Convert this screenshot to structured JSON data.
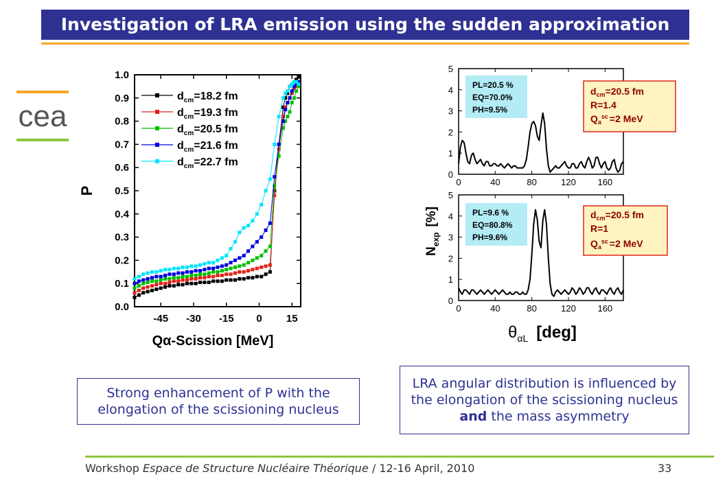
{
  "slide": {
    "title": "Investigation of LRA emission using the sudden approximation",
    "logo_text": "cea",
    "note_left": "Strong enhancement of P with the elongation of the scissioning nucleus",
    "note_right_a": "LRA angular distribution is influenced by the elongation of the scissioning nucleus ",
    "note_right_bold": "and",
    "note_right_b": " the mass asymmetry",
    "footer_prefix": "Workshop ",
    "footer_italic": "Espace de Structure Nucléaire Théorique",
    "footer_suffix": " / 12-16 April, 2010",
    "page_number": "33"
  },
  "chart_data": [
    {
      "type": "line",
      "xlabel_main": "Qα-Scission [MeV]",
      "ylabel": "P",
      "xlim": [
        -57,
        19
      ],
      "ylim": [
        0,
        1
      ],
      "xticks": [
        -45,
        -30,
        -15,
        0,
        15
      ],
      "xtick_labels": [
        "-45",
        "-30",
        "-15",
        "0",
        "15"
      ],
      "yticks": [
        0,
        0.1,
        0.2,
        0.3,
        0.4,
        0.5,
        0.6,
        0.7,
        0.8,
        0.9,
        1.0
      ],
      "ytick_labels": [
        "0.0",
        "0.1",
        "0.2",
        "0.3",
        "0.4",
        "0.5",
        "0.6",
        "0.7",
        "0.8",
        "0.9",
        "1.0"
      ],
      "legend_placement": "top-left",
      "series": [
        {
          "name": "d_cm=18.2 fm",
          "legend_label": "=18.2 fm",
          "color": "#000000",
          "x": [
            -57,
            -55,
            -53,
            -51,
            -49,
            -47,
            -45,
            -43,
            -41,
            -39,
            -37,
            -35,
            -33,
            -31,
            -29,
            -27,
            -25,
            -23,
            -21,
            -19,
            -17,
            -15,
            -13,
            -11,
            -9,
            -7,
            -5,
            -3,
            -1,
            1,
            3,
            5,
            7,
            9,
            11,
            12,
            13,
            14,
            15,
            16,
            17,
            18
          ],
          "y": [
            0.04,
            0.05,
            0.06,
            0.065,
            0.07,
            0.075,
            0.08,
            0.085,
            0.09,
            0.09,
            0.095,
            0.095,
            0.1,
            0.1,
            0.1,
            0.105,
            0.105,
            0.105,
            0.11,
            0.11,
            0.11,
            0.115,
            0.115,
            0.115,
            0.12,
            0.12,
            0.125,
            0.125,
            0.13,
            0.13,
            0.14,
            0.15,
            0.5,
            0.7,
            0.86,
            0.9,
            0.92,
            0.95,
            0.96,
            0.97,
            0.98,
            0.99
          ]
        },
        {
          "name": "d_cm=19.3 fm",
          "legend_label": "=19.3 fm",
          "color": "#e2231a",
          "x": [
            -57,
            -55,
            -53,
            -51,
            -49,
            -47,
            -45,
            -43,
            -41,
            -39,
            -37,
            -35,
            -33,
            -31,
            -29,
            -27,
            -25,
            -23,
            -21,
            -19,
            -17,
            -15,
            -13,
            -11,
            -9,
            -7,
            -5,
            -3,
            -1,
            1,
            3,
            5,
            7,
            9,
            11,
            12,
            13,
            14,
            15,
            16,
            17,
            18
          ],
          "y": [
            0.06,
            0.07,
            0.08,
            0.085,
            0.09,
            0.095,
            0.1,
            0.1,
            0.105,
            0.11,
            0.11,
            0.115,
            0.115,
            0.12,
            0.12,
            0.125,
            0.125,
            0.13,
            0.13,
            0.135,
            0.135,
            0.14,
            0.14,
            0.145,
            0.15,
            0.15,
            0.155,
            0.16,
            0.165,
            0.17,
            0.175,
            0.18,
            0.48,
            0.68,
            0.82,
            0.86,
            0.88,
            0.9,
            0.92,
            0.94,
            0.95,
            0.96
          ]
        },
        {
          "name": "d_cm=20.5 fm",
          "legend_label": "=20.5 fm",
          "color": "#00c000",
          "x": [
            -57,
            -55,
            -53,
            -51,
            -49,
            -47,
            -45,
            -43,
            -41,
            -39,
            -37,
            -35,
            -33,
            -31,
            -29,
            -27,
            -25,
            -23,
            -21,
            -19,
            -17,
            -15,
            -13,
            -11,
            -9,
            -7,
            -5,
            -3,
            -1,
            1,
            3,
            5,
            7,
            9,
            11,
            12,
            13,
            14,
            15,
            16,
            17,
            18
          ],
          "y": [
            0.08,
            0.09,
            0.1,
            0.105,
            0.11,
            0.11,
            0.115,
            0.12,
            0.12,
            0.125,
            0.125,
            0.13,
            0.13,
            0.135,
            0.135,
            0.14,
            0.14,
            0.145,
            0.15,
            0.15,
            0.155,
            0.16,
            0.165,
            0.17,
            0.175,
            0.18,
            0.19,
            0.2,
            0.21,
            0.22,
            0.24,
            0.26,
            0.52,
            0.65,
            0.77,
            0.8,
            0.82,
            0.84,
            0.88,
            0.9,
            0.93,
            0.95
          ]
        },
        {
          "name": "d_cm=21.6 fm",
          "legend_label": "=21.6 fm",
          "color": "#0000e0",
          "x": [
            -57,
            -55,
            -53,
            -51,
            -49,
            -47,
            -45,
            -43,
            -41,
            -39,
            -37,
            -35,
            -33,
            -31,
            -29,
            -27,
            -25,
            -23,
            -21,
            -19,
            -17,
            -15,
            -13,
            -11,
            -9,
            -7,
            -5,
            -3,
            -1,
            1,
            3,
            5,
            7,
            9,
            11,
            12,
            13,
            14,
            15,
            16,
            17,
            18
          ],
          "y": [
            0.1,
            0.11,
            0.115,
            0.12,
            0.125,
            0.13,
            0.13,
            0.135,
            0.14,
            0.14,
            0.145,
            0.145,
            0.15,
            0.15,
            0.155,
            0.155,
            0.16,
            0.165,
            0.165,
            0.17,
            0.175,
            0.18,
            0.19,
            0.2,
            0.21,
            0.22,
            0.24,
            0.26,
            0.28,
            0.3,
            0.33,
            0.36,
            0.56,
            0.7,
            0.8,
            0.85,
            0.88,
            0.9,
            0.93,
            0.95,
            0.96,
            0.97
          ]
        },
        {
          "name": "d_cm=22.7 fm",
          "legend_label": "=22.7 fm",
          "color": "#00e5ff",
          "x": [
            -57,
            -55,
            -53,
            -51,
            -49,
            -47,
            -45,
            -43,
            -41,
            -39,
            -37,
            -35,
            -33,
            -31,
            -29,
            -27,
            -25,
            -23,
            -21,
            -19,
            -17,
            -15,
            -13,
            -11,
            -9,
            -7,
            -5,
            -3,
            -1,
            1,
            3,
            5,
            7,
            9,
            11,
            12,
            13,
            14,
            15,
            16,
            17,
            18
          ],
          "y": [
            0.12,
            0.13,
            0.14,
            0.145,
            0.15,
            0.15,
            0.155,
            0.16,
            0.16,
            0.165,
            0.165,
            0.17,
            0.17,
            0.175,
            0.175,
            0.18,
            0.185,
            0.19,
            0.19,
            0.2,
            0.21,
            0.22,
            0.25,
            0.28,
            0.32,
            0.34,
            0.35,
            0.37,
            0.4,
            0.44,
            0.5,
            0.55,
            0.7,
            0.82,
            0.9,
            0.92,
            0.93,
            0.95,
            0.96,
            0.97,
            0.97,
            0.96
          ]
        }
      ]
    },
    {
      "type": "line",
      "xlim": [
        0,
        180
      ],
      "ylim": [
        0,
        5
      ],
      "xticks": [
        0,
        40,
        80,
        120,
        160
      ],
      "xtick_labels": [
        "0",
        "40",
        "80",
        "120",
        "160"
      ],
      "yticks": [
        0,
        1,
        2,
        3,
        4,
        5
      ],
      "ytick_labels": [
        "0",
        "1",
        "2",
        "3",
        "4",
        "5"
      ],
      "info_lines": [
        "PL=20.5 %",
        "EQ=70.0%",
        "PH=9.5%"
      ],
      "param_dcm": "=20.5 fm",
      "param_R": "R=1.4",
      "param_Q": "=2 MeV",
      "series": [
        {
          "color": "#000000",
          "x": [
            0,
            2,
            4,
            6,
            8,
            10,
            12,
            14,
            16,
            18,
            20,
            22,
            24,
            26,
            28,
            30,
            32,
            34,
            36,
            38,
            40,
            42,
            44,
            46,
            48,
            50,
            52,
            54,
            56,
            58,
            60,
            62,
            64,
            66,
            68,
            70,
            72,
            74,
            76,
            78,
            80,
            82,
            84,
            86,
            88,
            90,
            92,
            94,
            96,
            98,
            100,
            102,
            104,
            106,
            108,
            110,
            112,
            114,
            116,
            118,
            120,
            122,
            124,
            126,
            128,
            130,
            132,
            134,
            136,
            138,
            140,
            142,
            144,
            146,
            148,
            150,
            152,
            154,
            156,
            158,
            160,
            162,
            164,
            166,
            168,
            170,
            172,
            174,
            176,
            178,
            180
          ],
          "y": [
            0.5,
            1.3,
            1.6,
            1.5,
            1.0,
            0.6,
            0.5,
            0.9,
            1.0,
            0.7,
            0.5,
            0.6,
            0.7,
            0.5,
            0.4,
            0.6,
            0.6,
            0.4,
            0.4,
            0.5,
            0.5,
            0.4,
            0.4,
            0.5,
            0.4,
            0.3,
            0.4,
            0.5,
            0.4,
            0.3,
            0.4,
            0.4,
            0.3,
            0.3,
            0.3,
            0.3,
            0.4,
            0.7,
            1.3,
            2.0,
            2.4,
            2.5,
            2.3,
            1.8,
            1.6,
            2.3,
            2.9,
            2.4,
            1.2,
            0.4,
            0.1,
            0.2,
            0.3,
            0.4,
            0.3,
            0.3,
            0.4,
            0.5,
            0.6,
            0.4,
            0.3,
            0.3,
            0.5,
            0.5,
            0.3,
            0.3,
            0.5,
            0.6,
            0.4,
            0.3,
            0.6,
            0.8,
            0.6,
            0.3,
            0.4,
            0.8,
            0.8,
            0.5,
            0.3,
            0.5,
            0.6,
            0.3,
            0.2,
            0.3,
            0.6,
            0.7,
            0.3,
            0.1,
            0.2,
            0.5,
            0.6
          ]
        }
      ]
    },
    {
      "type": "line",
      "xlabel": "[deg]",
      "xlim": [
        0,
        180
      ],
      "ylim": [
        0,
        5
      ],
      "xticks": [
        0,
        40,
        80,
        120,
        160
      ],
      "xtick_labels": [
        "0",
        "40",
        "80",
        "120",
        "160"
      ],
      "yticks": [
        0,
        1,
        2,
        3,
        4,
        5
      ],
      "ytick_labels": [
        "0",
        "1",
        "2",
        "3",
        "4",
        "5"
      ],
      "info_lines": [
        "PL=9.6 %",
        "EQ=80.8%",
        "PH=9.6%"
      ],
      "param_dcm": "=20.5 fm",
      "param_R": "R=1",
      "param_Q": "=2 MeV",
      "series": [
        {
          "color": "#000000",
          "x": [
            0,
            2,
            4,
            6,
            8,
            10,
            12,
            14,
            16,
            18,
            20,
            22,
            24,
            26,
            28,
            30,
            32,
            34,
            36,
            38,
            40,
            42,
            44,
            46,
            48,
            50,
            52,
            54,
            56,
            58,
            60,
            62,
            64,
            66,
            68,
            70,
            72,
            74,
            76,
            78,
            80,
            82,
            84,
            86,
            88,
            90,
            92,
            94,
            96,
            98,
            100,
            102,
            104,
            106,
            108,
            110,
            112,
            114,
            116,
            118,
            120,
            122,
            124,
            126,
            128,
            130,
            132,
            134,
            136,
            138,
            140,
            142,
            144,
            146,
            148,
            150,
            152,
            154,
            156,
            158,
            160,
            162,
            164,
            166,
            168,
            170,
            172,
            174,
            176,
            178,
            180
          ],
          "y": [
            0.6,
            0.4,
            0.3,
            0.5,
            0.5,
            0.4,
            0.3,
            0.5,
            0.5,
            0.4,
            0.3,
            0.4,
            0.5,
            0.4,
            0.3,
            0.4,
            0.5,
            0.4,
            0.3,
            0.4,
            0.5,
            0.4,
            0.3,
            0.4,
            0.5,
            0.4,
            0.3,
            0.3,
            0.4,
            0.3,
            0.3,
            0.4,
            0.4,
            0.3,
            0.3,
            0.4,
            0.3,
            0.3,
            0.5,
            1.0,
            2.2,
            3.6,
            4.3,
            3.8,
            2.8,
            2.5,
            3.8,
            4.3,
            3.6,
            2.0,
            0.8,
            0.3,
            0.2,
            0.4,
            0.5,
            0.4,
            0.3,
            0.4,
            0.5,
            0.4,
            0.3,
            0.4,
            0.6,
            0.5,
            0.3,
            0.4,
            0.6,
            0.5,
            0.3,
            0.4,
            0.6,
            0.6,
            0.4,
            0.3,
            0.5,
            0.6,
            0.4,
            0.3,
            0.5,
            0.5,
            0.4,
            0.3,
            0.5,
            0.6,
            0.4,
            0.3,
            0.5,
            0.6,
            0.4,
            0.3,
            0.5
          ]
        }
      ]
    }
  ],
  "right_axis": {
    "ylabel_main": "N",
    "ylabel_sub": "exp",
    "ylabel_unit": "[%]",
    "xlabel_symbol": "θ",
    "xlabel_sub": "αL"
  },
  "colors": {
    "title_bg": "#2e3192",
    "accent_orange": "#f5a623",
    "accent_green": "#8dc63f",
    "info_box_bg": "#b3ecf5",
    "param_box_bg": "#fff3bf",
    "param_box_border": "#e2231a"
  }
}
